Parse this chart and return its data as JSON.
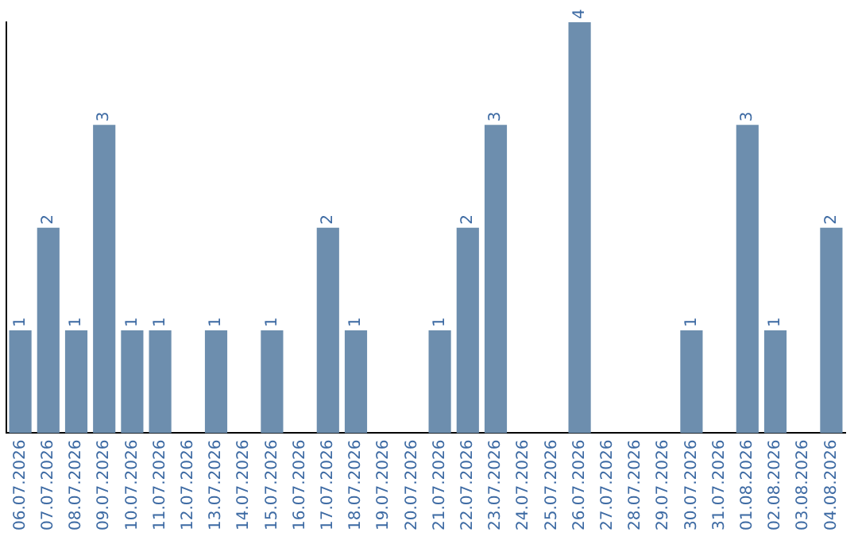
{
  "chart_data": {
    "type": "bar",
    "categories": [
      "06.07.2026",
      "07.07.2026",
      "08.07.2026",
      "09.07.2026",
      "10.07.2026",
      "11.07.2026",
      "12.07.2026",
      "13.07.2026",
      "14.07.2026",
      "15.07.2026",
      "16.07.2026",
      "17.07.2026",
      "18.07.2026",
      "19.07.2026",
      "20.07.2026",
      "21.07.2026",
      "22.07.2026",
      "23.07.2026",
      "24.07.2026",
      "25.07.2026",
      "26.07.2026",
      "27.07.2026",
      "28.07.2026",
      "29.07.2026",
      "30.07.2026",
      "31.07.2026",
      "01.08.2026",
      "02.08.2026",
      "03.08.2026",
      "04.08.2026"
    ],
    "values": [
      1,
      2,
      1,
      3,
      1,
      1,
      0,
      1,
      0,
      1,
      0,
      2,
      1,
      0,
      0,
      1,
      2,
      3,
      0,
      0,
      4,
      0,
      0,
      0,
      1,
      0,
      3,
      1,
      0,
      2
    ],
    "value_labels": [
      "1",
      "2",
      "1",
      "3",
      "1",
      "1",
      null,
      "1",
      null,
      "1",
      null,
      "2",
      "1",
      null,
      null,
      "1",
      "2",
      "3",
      null,
      null,
      "4",
      null,
      null,
      null,
      "1",
      null,
      "3",
      "1",
      null,
      "2"
    ],
    "color": "#6d8eae",
    "ylim": [
      0,
      4
    ],
    "tick_labels": "x",
    "grid": false,
    "legend": false
  }
}
